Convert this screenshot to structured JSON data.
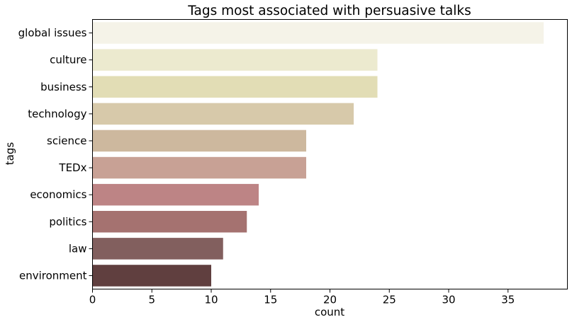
{
  "chart_data": {
    "type": "bar",
    "orientation": "horizontal",
    "title": "Tags most associated with persuasive talks",
    "xlabel": "count",
    "ylabel": "tags",
    "categories": [
      "global issues",
      "culture",
      "business",
      "technology",
      "science",
      "TEDx",
      "economics",
      "politics",
      "law",
      "environment"
    ],
    "values": [
      38,
      24,
      24,
      22,
      18,
      18,
      14,
      13,
      11,
      10
    ],
    "colors": [
      "#f5f3e8",
      "#eceacf",
      "#e2ddb5",
      "#d7c9aa",
      "#cdb89e",
      "#c8a195",
      "#bd8485",
      "#a57270",
      "#825f5e",
      "#603f3f"
    ],
    "xlim": [
      0,
      40
    ],
    "xticks": [
      0,
      5,
      10,
      15,
      20,
      25,
      30,
      35
    ],
    "grid": false,
    "legend": "none"
  }
}
